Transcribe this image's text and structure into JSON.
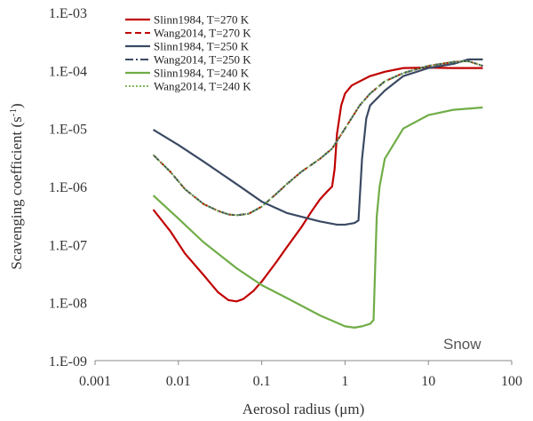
{
  "chart_data": {
    "type": "line",
    "xscale": "log",
    "yscale": "log",
    "xlim": [
      0.001,
      100
    ],
    "ylim": [
      1e-09,
      0.001
    ],
    "x_tick_values": [
      0.001,
      0.01,
      0.1,
      1,
      10,
      100
    ],
    "x_tick_labels": [
      "0.001",
      "0.01",
      "0.1",
      "1",
      "10",
      "100"
    ],
    "y_tick_values": [
      1e-09,
      1e-08,
      1e-07,
      1e-06,
      1e-05,
      0.0001,
      0.001
    ],
    "y_tick_labels": [
      "1.E-09",
      "1.E-08",
      "1.E-07",
      "1.E-06",
      "1.E-05",
      "1.E-04",
      "1.E-03"
    ],
    "xlabel": "Aerosol radius (μm)",
    "ylabel": "Scavenging coefficient (s",
    "ylabel_sup": "-1",
    "ylabel_end": ")",
    "annotation": "Snow",
    "grid": false,
    "legend_position": "top-left",
    "series": [
      {
        "name": "Slinn1984, T=270 K",
        "color": "#c00000",
        "dash": "solid",
        "x": [
          0.005,
          0.008,
          0.012,
          0.02,
          0.03,
          0.04,
          0.05,
          0.06,
          0.08,
          0.1,
          0.15,
          0.2,
          0.3,
          0.4,
          0.5,
          0.6,
          0.7,
          0.75,
          0.8,
          0.9,
          1.0,
          1.2,
          1.5,
          2,
          3,
          5,
          10,
          20,
          30,
          45
        ],
        "y": [
          4e-07,
          1.7e-07,
          7e-08,
          3e-08,
          1.5e-08,
          1.1e-08,
          1.05e-08,
          1.15e-08,
          1.6e-08,
          2.3e-08,
          5e-08,
          9e-08,
          2e-07,
          3.8e-07,
          6e-07,
          8e-07,
          1e-06,
          2e-06,
          8e-06,
          2.5e-05,
          4e-05,
          5.5e-05,
          6.5e-05,
          8e-05,
          9.5e-05,
          0.00011,
          0.000112,
          0.00011,
          0.00011,
          0.00011
        ]
      },
      {
        "name": "Wang2014, T=270 K",
        "color": "#c00000",
        "dash": "dashed",
        "x": [
          0.005,
          0.008,
          0.012,
          0.02,
          0.03,
          0.04,
          0.05,
          0.07,
          0.1,
          0.15,
          0.2,
          0.3,
          0.5,
          0.7,
          1,
          1.5,
          2,
          3,
          5,
          10,
          20,
          30,
          45
        ],
        "y": [
          3.5e-06,
          1.8e-06,
          9e-07,
          5e-07,
          3.8e-07,
          3.3e-07,
          3.2e-07,
          3.4e-07,
          4.5e-07,
          7.5e-07,
          1.1e-06,
          1.8e-06,
          3e-06,
          4.5e-06,
          1e-05,
          2.5e-05,
          4e-05,
          6.5e-05,
          9e-05,
          0.00012,
          0.00014,
          0.000145,
          0.00012
        ]
      },
      {
        "name": "Slinn1984, T=250 K",
        "color": "#3b4a63",
        "dash": "solid",
        "x": [
          0.005,
          0.01,
          0.02,
          0.05,
          0.1,
          0.2,
          0.5,
          0.8,
          1,
          1.3,
          1.45,
          1.6,
          1.8,
          2,
          3,
          5,
          10,
          20,
          30,
          45
        ],
        "y": [
          9.5e-06,
          5.2e-06,
          2.7e-06,
          1.1e-06,
          5.5e-07,
          3.5e-07,
          2.5e-07,
          2.2e-07,
          2.2e-07,
          2.35e-07,
          2.6e-07,
          3e-06,
          1.5e-05,
          2.5e-05,
          4.5e-05,
          8e-05,
          0.00011,
          0.00013,
          0.000155,
          0.000155
        ]
      },
      {
        "name": "Wang2014, T=250 K",
        "color": "#3b4a63",
        "dash": "dashdot",
        "x": [
          0.005,
          0.008,
          0.012,
          0.02,
          0.03,
          0.04,
          0.05,
          0.07,
          0.1,
          0.15,
          0.2,
          0.3,
          0.5,
          0.7,
          1,
          1.5,
          2,
          3,
          5,
          10,
          20,
          30,
          45
        ],
        "y": [
          3.5e-06,
          1.8e-06,
          9e-07,
          5e-07,
          3.8e-07,
          3.3e-07,
          3.2e-07,
          3.4e-07,
          4.5e-07,
          7.5e-07,
          1.1e-06,
          1.8e-06,
          3e-06,
          4.5e-06,
          1e-05,
          2.5e-05,
          4e-05,
          6.5e-05,
          9e-05,
          0.00012,
          0.00014,
          0.000145,
          0.00012
        ]
      },
      {
        "name": "Slinn1984, T=240 K",
        "color": "#70ad47",
        "dash": "solid",
        "x": [
          0.005,
          0.01,
          0.02,
          0.05,
          0.1,
          0.2,
          0.5,
          1,
          1.3,
          1.6,
          2,
          2.2,
          2.4,
          2.6,
          3,
          5,
          10,
          20,
          45
        ],
        "y": [
          7e-07,
          2.8e-07,
          1.1e-07,
          3.9e-08,
          2e-08,
          1.2e-08,
          6e-09,
          3.9e-09,
          3.7e-09,
          3.9e-09,
          4.3e-09,
          5e-09,
          3e-07,
          1e-06,
          3e-06,
          1e-05,
          1.7e-05,
          2.1e-05,
          2.3e-05
        ]
      },
      {
        "name": "Wang2014, T=240 K",
        "color": "#70ad47",
        "dash": "dotted",
        "x": [
          0.005,
          0.008,
          0.012,
          0.02,
          0.03,
          0.04,
          0.05,
          0.07,
          0.1,
          0.15,
          0.2,
          0.3,
          0.5,
          0.7,
          1,
          1.5,
          2,
          3,
          5,
          10,
          20,
          30,
          45
        ],
        "y": [
          3.5e-06,
          1.8e-06,
          9e-07,
          5e-07,
          3.8e-07,
          3.3e-07,
          3.2e-07,
          3.4e-07,
          4.5e-07,
          7.5e-07,
          1.1e-06,
          1.8e-06,
          3e-06,
          4.5e-06,
          1e-05,
          2.5e-05,
          4e-05,
          6.5e-05,
          9e-05,
          0.00012,
          0.00014,
          0.000145,
          0.00012
        ]
      }
    ]
  }
}
